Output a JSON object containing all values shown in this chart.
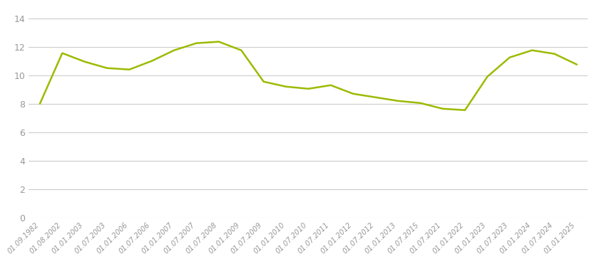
{
  "dates": [
    "01.09.1982",
    "01.08.2002",
    "01.01.2003",
    "01.07.2003",
    "01.01.2006",
    "01.07.2006",
    "01.01.2007",
    "01.07.2007",
    "01.07.2008",
    "01.01.2009",
    "01.07.2009",
    "01.01.2010",
    "01.07.2010",
    "01.07.2011",
    "01.01.2012",
    "01.07.2012",
    "01.01.2013",
    "01.07.2015",
    "01.07.2021",
    "01.01.2022",
    "01.01.2023",
    "01.07.2023",
    "01.01.2024",
    "01.07.2024",
    "01.01.2025"
  ],
  "values": [
    8.0,
    11.55,
    10.95,
    10.5,
    10.4,
    11.0,
    11.75,
    12.25,
    12.35,
    11.75,
    9.55,
    9.2,
    9.05,
    9.3,
    8.7,
    8.45,
    8.2,
    8.05,
    7.65,
    7.55,
    9.9,
    11.25,
    11.75,
    11.5,
    10.75
  ],
  "line_color": "#9BBB00",
  "line_width": 1.8,
  "background_color": "#FFFFFF",
  "grid_color": "#CCCCCC",
  "tick_label_color": "#999999",
  "ylim": [
    0,
    15
  ],
  "yticks": [
    0,
    2,
    4,
    6,
    8,
    10,
    12,
    14
  ],
  "figsize": [
    8.3,
    3.64
  ],
  "dpi": 100
}
